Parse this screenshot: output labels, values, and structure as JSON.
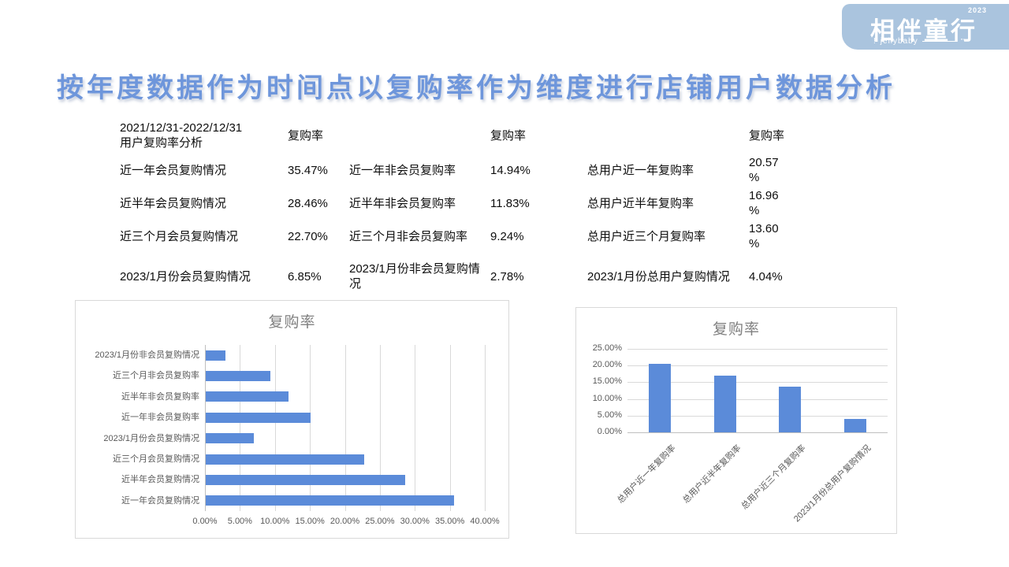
{
  "logo": {
    "brand": "相伴童行",
    "year": "2023",
    "sub": "jellybaby",
    "exclamation": "!",
    "quote": "”"
  },
  "title": "按年度数据作为时间点以复购率作为维度进行店铺用户数据分析",
  "table": {
    "header": {
      "title": "2021/12/31-2022/12/31\n用户复购率分析",
      "rate_label": "复购率"
    },
    "rows": [
      {
        "c1": "近一年会员复购情况",
        "v1": "35.47%",
        "c2": "近一年非会员复购率",
        "v2": "14.94%",
        "c3": "总用户近一年复购率",
        "v3": "20.57\n%"
      },
      {
        "c1": "近半年会员复购情况",
        "v1": "28.46%",
        "c2": "近半年非会员复购率",
        "v2": "11.83%",
        "c3": "总用户近半年复购率",
        "v3": "16.96\n%"
      },
      {
        "c1": "近三个月会员复购情况",
        "v1": "22.70%",
        "c2": "近三个月非会员复购率",
        "v2": "9.24%",
        "c3": "总用户近三个月复购率",
        "v3": "13.60\n%"
      },
      {
        "c1": "2023/1月份会员复购情况",
        "v1": "6.85%",
        "c2": "2023/1月份非会员复购情况",
        "v2": "2.78%",
        "c3": "2023/1月份总用户复购情况",
        "v3": "4.04%"
      }
    ]
  },
  "chart_data": [
    {
      "type": "bar",
      "orientation": "horizontal",
      "title": "复购率",
      "categories": [
        "2023/1月份非会员复购情况",
        "近三个月非会员复购率",
        "近半年非会员复购率",
        "近一年非会员复购率",
        "2023/1月份会员复购情况",
        "近三个月会员复购情况",
        "近半年会员复购情况",
        "近一年会员复购情况"
      ],
      "values": [
        2.78,
        9.24,
        11.83,
        14.94,
        6.85,
        22.7,
        28.46,
        35.47
      ],
      "xlim": [
        0,
        40
      ],
      "x_ticks": [
        "0.00%",
        "5.00%",
        "10.00%",
        "15.00%",
        "20.00%",
        "25.00%",
        "30.00%",
        "35.00%",
        "40.00%"
      ],
      "bar_color": "#5b8bd9",
      "grid": true,
      "legend": false
    },
    {
      "type": "bar",
      "orientation": "vertical",
      "title": "复购率",
      "categories": [
        "总用户近一年复购率",
        "总用户近半年复购率",
        "总用户近三个月复购率",
        "2023/1月份总用户复购情况"
      ],
      "values": [
        20.57,
        16.96,
        13.6,
        4.04
      ],
      "ylim": [
        0,
        25
      ],
      "y_ticks": [
        "25.00%",
        "20.00%",
        "15.00%",
        "10.00%",
        "5.00%",
        "0.00%"
      ],
      "bar_color": "#5b8bd9",
      "grid": true,
      "legend": false
    }
  ],
  "colors": {
    "accent_blue": "#5b8bd9",
    "title_blue": "#6e96db",
    "logo_bg": "#aac4de",
    "axis_text": "#595959",
    "gridline": "#d9d9d9",
    "chart_title_gray": "#808080"
  }
}
